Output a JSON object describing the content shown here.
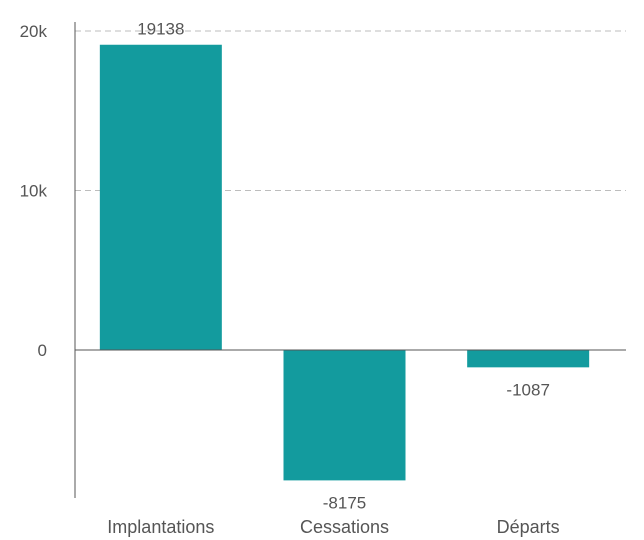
{
  "chart_data": {
    "type": "bar",
    "categories": [
      "Implantations",
      "Cessations",
      "Départs"
    ],
    "values": [
      19138,
      -8175,
      -1087
    ],
    "data_labels": [
      "19138",
      "-8175",
      "-1087"
    ],
    "title": "",
    "xlabel": "",
    "ylabel": "",
    "ylim": [
      -9000,
      20000
    ],
    "yticks": [
      {
        "value": 0,
        "label": "0"
      },
      {
        "value": 10000,
        "label": "10k"
      },
      {
        "value": 20000,
        "label": "20k"
      }
    ],
    "grid": true,
    "legend": "none",
    "bar_color": "#139b9e"
  }
}
